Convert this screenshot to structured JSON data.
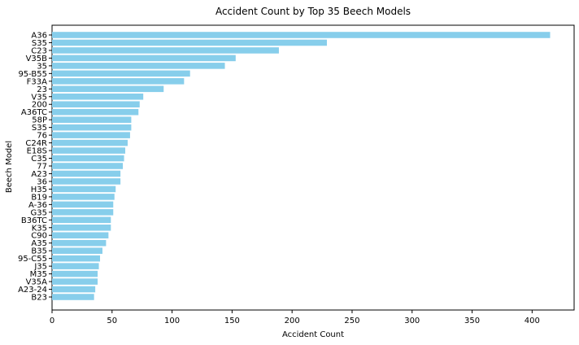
{
  "chart_data": {
    "type": "bar",
    "orientation": "horizontal",
    "title": "Accident Count by Top 35 Beech Models",
    "xlabel": "Accident Count",
    "ylabel": "Beech Model",
    "xlim": [
      0,
      435
    ],
    "xticks": [
      0,
      50,
      100,
      150,
      200,
      250,
      300,
      350,
      400
    ],
    "grid": false,
    "bar_color": "#87ceeb",
    "categories": [
      "A36",
      "S35",
      "C23",
      "V35B",
      "35",
      "95-B55",
      "F33A",
      "23",
      "V35",
      "200",
      "A36TC",
      "58P",
      "S35",
      "76",
      "C24R",
      "E18S",
      "C35",
      "77",
      "A23",
      "36",
      "H35",
      "B19",
      "A-36",
      "G35",
      "B36TC",
      "K35",
      "C90",
      "A35",
      "B35",
      "95-C55",
      "J35",
      "M35",
      "V35A",
      "A23-24",
      "B23"
    ],
    "values": [
      415,
      229,
      189,
      153,
      144,
      115,
      110,
      93,
      76,
      73,
      72,
      66,
      66,
      65,
      63,
      61,
      60,
      59,
      57,
      57,
      53,
      52,
      51,
      51,
      49,
      49,
      47,
      45,
      42,
      40,
      39,
      38,
      38,
      36,
      35
    ]
  }
}
